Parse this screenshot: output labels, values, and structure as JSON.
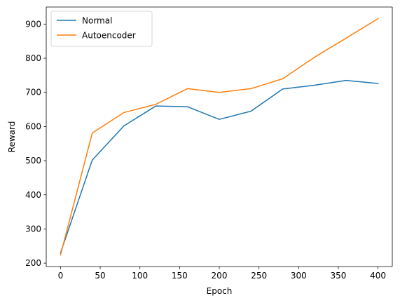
{
  "chart_data": {
    "type": "line",
    "title": "",
    "xlabel": "Epoch",
    "ylabel": "Reward",
    "xlim": [
      -18,
      418
    ],
    "ylim": [
      190,
      950
    ],
    "xticks": [
      0,
      50,
      100,
      150,
      200,
      250,
      300,
      350,
      400
    ],
    "yticks": [
      200,
      300,
      400,
      500,
      600,
      700,
      800,
      900
    ],
    "grid": false,
    "legend_position": "top-left",
    "series": [
      {
        "name": "Normal",
        "color": "#1f77b4",
        "x": [
          0,
          40,
          80,
          120,
          160,
          200,
          240,
          280,
          320,
          360,
          400
        ],
        "values": [
          230,
          502,
          602,
          660,
          658,
          621,
          645,
          710,
          721,
          735,
          726
        ]
      },
      {
        "name": "Autoencoder",
        "color": "#ff7f0e",
        "x": [
          0,
          40,
          80,
          120,
          160,
          200,
          240,
          280,
          320,
          360,
          400
        ],
        "values": [
          224,
          581,
          641,
          665,
          711,
          700,
          711,
          740,
          803,
          859,
          916
        ]
      }
    ]
  }
}
